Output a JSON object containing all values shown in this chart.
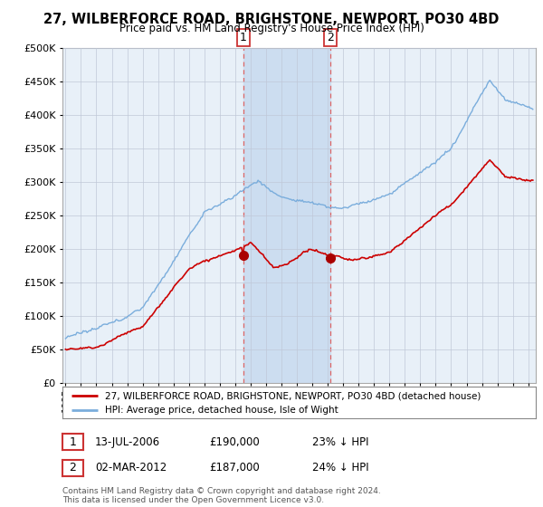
{
  "title": "27, WILBERFORCE ROAD, BRIGHSTONE, NEWPORT, PO30 4BD",
  "subtitle": "Price paid vs. HM Land Registry's House Price Index (HPI)",
  "legend_line1": "27, WILBERFORCE ROAD, BRIGHSTONE, NEWPORT, PO30 4BD (detached house)",
  "legend_line2": "HPI: Average price, detached house, Isle of Wight",
  "footer": "Contains HM Land Registry data © Crown copyright and database right 2024.\nThis data is licensed under the Open Government Licence v3.0.",
  "annotation1_date": "13-JUL-2006",
  "annotation1_price": "£190,000",
  "annotation1_hpi": "23% ↓ HPI",
  "annotation2_date": "02-MAR-2012",
  "annotation2_price": "£187,000",
  "annotation2_hpi": "24% ↓ HPI",
  "hpi_color": "#7aaddc",
  "price_color": "#cc0000",
  "marker_color": "#aa0000",
  "background_color": "#ffffff",
  "plot_bg_color": "#e8f0f8",
  "annotation_shade_color": "#ccddf0",
  "dashed_line_color": "#dd6666",
  "ylim": [
    0,
    500000
  ],
  "yticks": [
    0,
    50000,
    100000,
    150000,
    200000,
    250000,
    300000,
    350000,
    400000,
    450000,
    500000
  ],
  "sale1_x": 2006.53,
  "sale1_y": 190000,
  "sale2_x": 2012.17,
  "sale2_y": 187000,
  "xmin": 1994.8,
  "xmax": 2025.5
}
